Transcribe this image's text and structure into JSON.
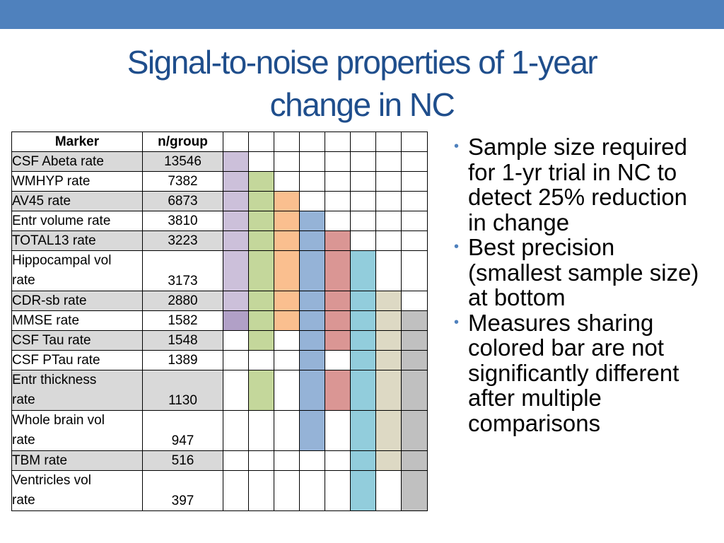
{
  "slide": {
    "title_line1": "Signal-to-noise properties of 1-year",
    "title_line2": "change in NC"
  },
  "table": {
    "header": {
      "marker": "Marker",
      "ngroup": "n/group"
    },
    "bar_colors": [
      "#ccc0da",
      "#c4d79b",
      "#fabf8f",
      "#95b3d7",
      "#da9694",
      "#92cddc",
      "#ddd9c4",
      "#c0c0c0"
    ],
    "alt_colors": {
      "1": "#b1a0c7"
    },
    "rows": [
      {
        "label_lines": [
          "CSF Abeta rate"
        ],
        "n": "13546",
        "shade": true,
        "bars": [
          1,
          0,
          0,
          0,
          0,
          0,
          0,
          0
        ]
      },
      {
        "label_lines": [
          "WMHYP rate"
        ],
        "n": "7382",
        "shade": false,
        "bars": [
          1,
          1,
          0,
          0,
          0,
          0,
          0,
          0
        ]
      },
      {
        "label_lines": [
          "AV45 rate"
        ],
        "n": "6873",
        "shade": true,
        "bars": [
          1,
          1,
          1,
          0,
          0,
          0,
          0,
          0
        ]
      },
      {
        "label_lines": [
          "Entr volume rate"
        ],
        "n": "3810",
        "shade": false,
        "bars": [
          1,
          1,
          1,
          1,
          0,
          0,
          0,
          0
        ]
      },
      {
        "label_lines": [
          "TOTAL13 rate"
        ],
        "n": "3223",
        "shade": true,
        "bars": [
          1,
          1,
          1,
          1,
          1,
          0,
          0,
          0
        ]
      },
      {
        "label_lines": [
          "Hippocampal vol",
          "rate"
        ],
        "n": "3173",
        "shade": false,
        "bars": [
          1,
          1,
          1,
          1,
          1,
          1,
          0,
          0
        ]
      },
      {
        "label_lines": [
          "CDR-sb rate"
        ],
        "n": "2880",
        "shade": true,
        "bars": [
          1,
          1,
          1,
          1,
          1,
          1,
          1,
          0
        ]
      },
      {
        "label_lines": [
          "MMSE rate"
        ],
        "n": "1582",
        "shade": false,
        "bars": [
          2,
          1,
          1,
          1,
          1,
          1,
          1,
          1
        ]
      },
      {
        "label_lines": [
          "CSF Tau rate"
        ],
        "n": "1548",
        "shade": true,
        "bars": [
          0,
          1,
          0,
          1,
          1,
          1,
          1,
          1
        ]
      },
      {
        "label_lines": [
          "CSF PTau rate"
        ],
        "n": "1389",
        "shade": false,
        "bars": [
          0,
          0,
          0,
          1,
          0,
          1,
          1,
          1
        ]
      },
      {
        "label_lines": [
          "Entr thickness",
          "rate"
        ],
        "n": "1130",
        "shade": true,
        "bars": [
          0,
          1,
          0,
          1,
          1,
          1,
          1,
          1
        ]
      },
      {
        "label_lines": [
          "Whole brain vol",
          "rate"
        ],
        "n": "947",
        "shade": false,
        "bars": [
          0,
          0,
          0,
          1,
          0,
          1,
          1,
          1
        ]
      },
      {
        "label_lines": [
          "TBM rate"
        ],
        "n": "516",
        "shade": true,
        "bars": [
          0,
          0,
          0,
          0,
          0,
          1,
          1,
          1
        ]
      },
      {
        "label_lines": [
          "Ventricles vol",
          "rate"
        ],
        "n": "397",
        "shade": false,
        "bars": [
          0,
          0,
          0,
          0,
          0,
          1,
          0,
          1
        ]
      }
    ]
  },
  "bullets": [
    "Sample size required for 1-yr trial in NC to detect 25% reduction in change",
    "Best precision (smallest sample size) at bottom",
    "Measures sharing colored bar are not significantly different after multiple comparisons"
  ]
}
